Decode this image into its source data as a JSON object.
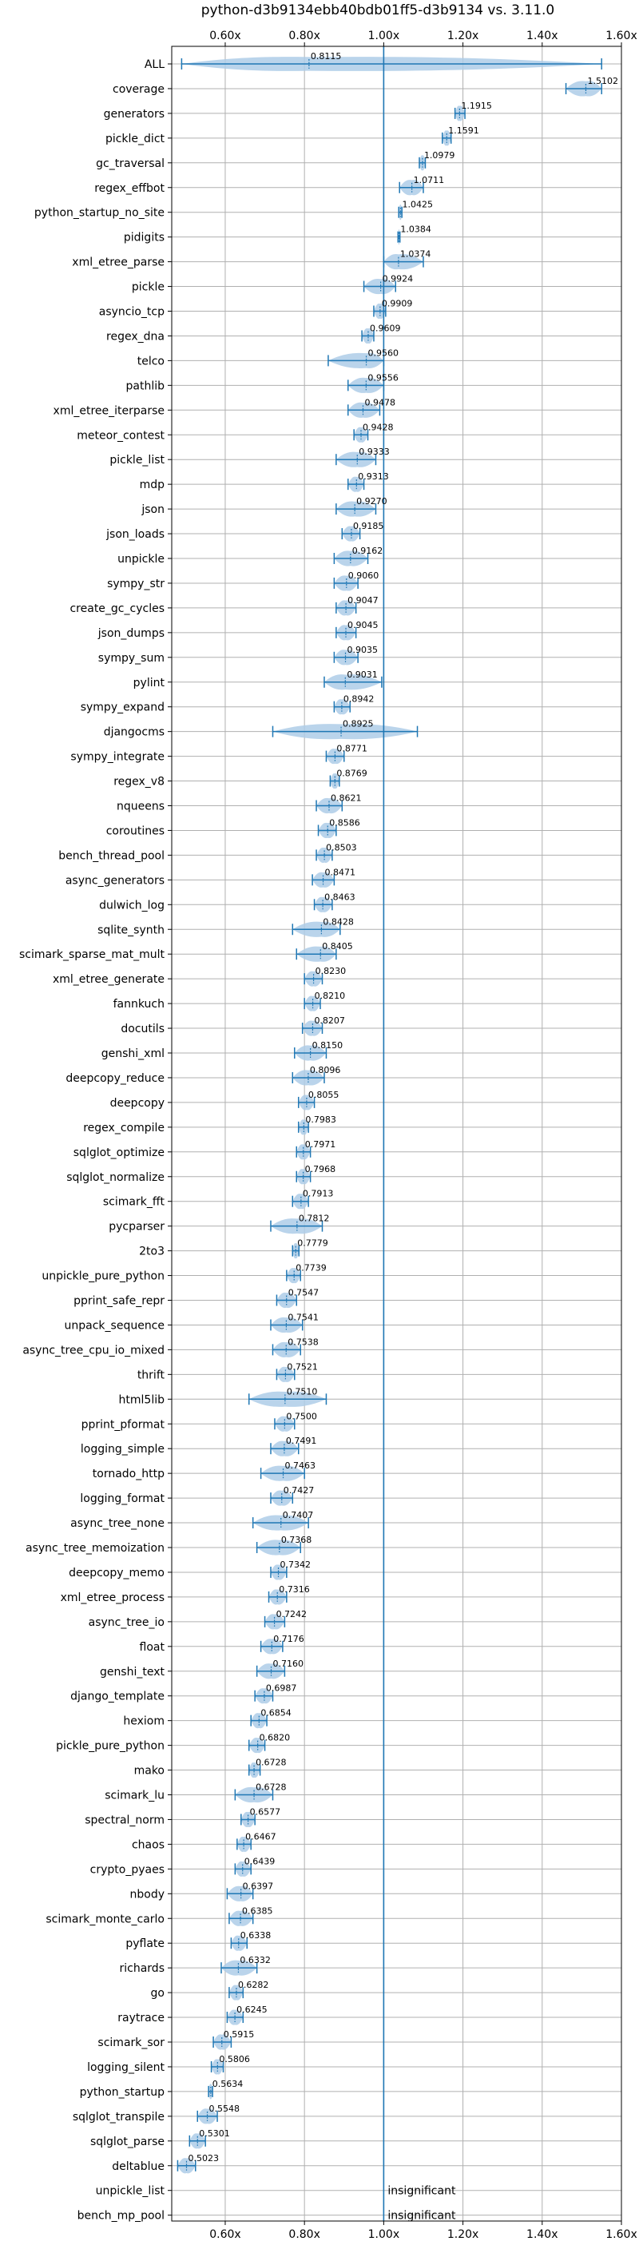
{
  "chart_data": {
    "type": "violin",
    "title": "python-d3b9134ebb40bdb01ff5-d3b9134 vs. 3.11.0",
    "xlabel": "",
    "ylabel": "",
    "xlim": [
      0.465,
      1.6
    ],
    "x_ticks": [
      0.6,
      0.8,
      1.0,
      1.2,
      1.4,
      1.6
    ],
    "x_tick_labels": [
      "0.60x",
      "0.80x",
      "1.00x",
      "1.20x",
      "1.40x",
      "1.60x"
    ],
    "reference_line": 1.0,
    "grid": true,
    "accent_color": "#1f77b4",
    "violin_color": "#aecde8",
    "insignificant_label": "insignificant",
    "benchmarks": [
      {
        "name": "ALL",
        "value": 0.8115,
        "min": 0.49,
        "max": 1.55,
        "spread": 0.28,
        "label": "0.8115"
      },
      {
        "name": "coverage",
        "value": 1.5102,
        "min": 1.46,
        "max": 1.55,
        "spread": 0.3,
        "label": "1.5102"
      },
      {
        "name": "generators",
        "value": 1.1915,
        "min": 1.18,
        "max": 1.205,
        "spread": 0.3,
        "label": "1.1915"
      },
      {
        "name": "pickle_dict",
        "value": 1.1591,
        "min": 1.148,
        "max": 1.17,
        "spread": 0.3,
        "label": "1.1591"
      },
      {
        "name": "gc_traversal",
        "value": 1.0979,
        "min": 1.09,
        "max": 1.105,
        "spread": 0.3,
        "label": "1.0979"
      },
      {
        "name": "regex_effbot",
        "value": 1.0711,
        "min": 1.04,
        "max": 1.1,
        "spread": 0.3,
        "label": "1.0711"
      },
      {
        "name": "python_startup_no_site",
        "value": 1.0425,
        "min": 1.038,
        "max": 1.046,
        "spread": 0.3,
        "label": "1.0425"
      },
      {
        "name": "pidigits",
        "value": 1.0384,
        "min": 1.036,
        "max": 1.041,
        "spread": 0.3,
        "label": "1.0384"
      },
      {
        "name": "xml_etree_parse",
        "value": 1.0374,
        "min": 1.0,
        "max": 1.1,
        "spread": 0.3,
        "label": "1.0374"
      },
      {
        "name": "pickle",
        "value": 0.9924,
        "min": 0.95,
        "max": 1.03,
        "spread": 0.3,
        "label": "0.9924"
      },
      {
        "name": "asyncio_tcp",
        "value": 0.9909,
        "min": 0.975,
        "max": 1.005,
        "spread": 0.3,
        "label": "0.9909"
      },
      {
        "name": "regex_dna",
        "value": 0.9609,
        "min": 0.945,
        "max": 0.975,
        "spread": 0.3,
        "label": "0.9609"
      },
      {
        "name": "telco",
        "value": 0.956,
        "min": 0.86,
        "max": 1.0,
        "spread": 0.3,
        "label": "0.9560"
      },
      {
        "name": "pathlib",
        "value": 0.9556,
        "min": 0.91,
        "max": 1.0,
        "spread": 0.3,
        "label": "0.9556"
      },
      {
        "name": "xml_etree_iterparse",
        "value": 0.9478,
        "min": 0.91,
        "max": 0.99,
        "spread": 0.3,
        "label": "0.9478"
      },
      {
        "name": "meteor_contest",
        "value": 0.9428,
        "min": 0.925,
        "max": 0.96,
        "spread": 0.3,
        "label": "0.9428"
      },
      {
        "name": "pickle_list",
        "value": 0.9333,
        "min": 0.88,
        "max": 0.98,
        "spread": 0.3,
        "label": "0.9333"
      },
      {
        "name": "mdp",
        "value": 0.9313,
        "min": 0.91,
        "max": 0.95,
        "spread": 0.3,
        "label": "0.9313"
      },
      {
        "name": "json",
        "value": 0.927,
        "min": 0.88,
        "max": 0.98,
        "spread": 0.3,
        "label": "0.9270"
      },
      {
        "name": "json_loads",
        "value": 0.9185,
        "min": 0.895,
        "max": 0.94,
        "spread": 0.3,
        "label": "0.9185"
      },
      {
        "name": "unpickle",
        "value": 0.9162,
        "min": 0.875,
        "max": 0.96,
        "spread": 0.3,
        "label": "0.9162"
      },
      {
        "name": "sympy_str",
        "value": 0.906,
        "min": 0.875,
        "max": 0.935,
        "spread": 0.3,
        "label": "0.9060"
      },
      {
        "name": "create_gc_cycles",
        "value": 0.9047,
        "min": 0.88,
        "max": 0.93,
        "spread": 0.3,
        "label": "0.9047"
      },
      {
        "name": "json_dumps",
        "value": 0.9045,
        "min": 0.88,
        "max": 0.93,
        "spread": 0.3,
        "label": "0.9045"
      },
      {
        "name": "sympy_sum",
        "value": 0.9035,
        "min": 0.875,
        "max": 0.935,
        "spread": 0.3,
        "label": "0.9035"
      },
      {
        "name": "pylint",
        "value": 0.9031,
        "min": 0.85,
        "max": 0.995,
        "spread": 0.3,
        "label": "0.9031"
      },
      {
        "name": "sympy_expand",
        "value": 0.8942,
        "min": 0.875,
        "max": 0.915,
        "spread": 0.3,
        "label": "0.8942"
      },
      {
        "name": "djangocms",
        "value": 0.8925,
        "min": 0.72,
        "max": 1.085,
        "spread": 0.3,
        "label": "0.8925"
      },
      {
        "name": "sympy_integrate",
        "value": 0.8771,
        "min": 0.855,
        "max": 0.9,
        "spread": 0.3,
        "label": "0.8771"
      },
      {
        "name": "regex_v8",
        "value": 0.8769,
        "min": 0.865,
        "max": 0.888,
        "spread": 0.3,
        "label": "0.8769"
      },
      {
        "name": "nqueens",
        "value": 0.8621,
        "min": 0.83,
        "max": 0.895,
        "spread": 0.3,
        "label": "0.8621"
      },
      {
        "name": "coroutines",
        "value": 0.8586,
        "min": 0.835,
        "max": 0.88,
        "spread": 0.3,
        "label": "0.8586"
      },
      {
        "name": "bench_thread_pool",
        "value": 0.8503,
        "min": 0.83,
        "max": 0.87,
        "spread": 0.3,
        "label": "0.8503"
      },
      {
        "name": "async_generators",
        "value": 0.8471,
        "min": 0.82,
        "max": 0.875,
        "spread": 0.3,
        "label": "0.8471"
      },
      {
        "name": "dulwich_log",
        "value": 0.8463,
        "min": 0.825,
        "max": 0.87,
        "spread": 0.3,
        "label": "0.8463"
      },
      {
        "name": "sqlite_synth",
        "value": 0.8428,
        "min": 0.77,
        "max": 0.89,
        "spread": 0.3,
        "label": "0.8428"
      },
      {
        "name": "scimark_sparse_mat_mult",
        "value": 0.8405,
        "min": 0.78,
        "max": 0.88,
        "spread": 0.3,
        "label": "0.8405"
      },
      {
        "name": "xml_etree_generate",
        "value": 0.823,
        "min": 0.8,
        "max": 0.845,
        "spread": 0.3,
        "label": "0.8230"
      },
      {
        "name": "fannkuch",
        "value": 0.821,
        "min": 0.8,
        "max": 0.84,
        "spread": 0.3,
        "label": "0.8210"
      },
      {
        "name": "docutils",
        "value": 0.8207,
        "min": 0.795,
        "max": 0.845,
        "spread": 0.3,
        "label": "0.8207"
      },
      {
        "name": "genshi_xml",
        "value": 0.815,
        "min": 0.775,
        "max": 0.855,
        "spread": 0.3,
        "label": "0.8150"
      },
      {
        "name": "deepcopy_reduce",
        "value": 0.8096,
        "min": 0.77,
        "max": 0.85,
        "spread": 0.3,
        "label": "0.8096"
      },
      {
        "name": "deepcopy",
        "value": 0.8055,
        "min": 0.785,
        "max": 0.825,
        "spread": 0.3,
        "label": "0.8055"
      },
      {
        "name": "regex_compile",
        "value": 0.7983,
        "min": 0.785,
        "max": 0.81,
        "spread": 0.3,
        "label": "0.7983"
      },
      {
        "name": "sqlglot_optimize",
        "value": 0.7971,
        "min": 0.78,
        "max": 0.815,
        "spread": 0.3,
        "label": "0.7971"
      },
      {
        "name": "sqlglot_normalize",
        "value": 0.7968,
        "min": 0.78,
        "max": 0.815,
        "spread": 0.3,
        "label": "0.7968"
      },
      {
        "name": "scimark_fft",
        "value": 0.7913,
        "min": 0.77,
        "max": 0.81,
        "spread": 0.3,
        "label": "0.7913"
      },
      {
        "name": "pycparser",
        "value": 0.7812,
        "min": 0.715,
        "max": 0.845,
        "spread": 0.3,
        "label": "0.7812"
      },
      {
        "name": "2to3",
        "value": 0.7779,
        "min": 0.77,
        "max": 0.786,
        "spread": 0.3,
        "label": "0.7779"
      },
      {
        "name": "unpickle_pure_python",
        "value": 0.7739,
        "min": 0.755,
        "max": 0.79,
        "spread": 0.3,
        "label": "0.7739"
      },
      {
        "name": "pprint_safe_repr",
        "value": 0.7547,
        "min": 0.73,
        "max": 0.78,
        "spread": 0.3,
        "label": "0.7547"
      },
      {
        "name": "unpack_sequence",
        "value": 0.7541,
        "min": 0.715,
        "max": 0.795,
        "spread": 0.3,
        "label": "0.7541"
      },
      {
        "name": "async_tree_cpu_io_mixed",
        "value": 0.7538,
        "min": 0.72,
        "max": 0.79,
        "spread": 0.3,
        "label": "0.7538"
      },
      {
        "name": "thrift",
        "value": 0.7521,
        "min": 0.73,
        "max": 0.775,
        "spread": 0.3,
        "label": "0.7521"
      },
      {
        "name": "html5lib",
        "value": 0.751,
        "min": 0.66,
        "max": 0.855,
        "spread": 0.3,
        "label": "0.7510"
      },
      {
        "name": "pprint_pformat",
        "value": 0.75,
        "min": 0.725,
        "max": 0.775,
        "spread": 0.3,
        "label": "0.7500"
      },
      {
        "name": "logging_simple",
        "value": 0.7491,
        "min": 0.715,
        "max": 0.785,
        "spread": 0.3,
        "label": "0.7491"
      },
      {
        "name": "tornado_http",
        "value": 0.7463,
        "min": 0.69,
        "max": 0.8,
        "spread": 0.3,
        "label": "0.7463"
      },
      {
        "name": "logging_format",
        "value": 0.7427,
        "min": 0.715,
        "max": 0.77,
        "spread": 0.3,
        "label": "0.7427"
      },
      {
        "name": "async_tree_none",
        "value": 0.7407,
        "min": 0.67,
        "max": 0.81,
        "spread": 0.3,
        "label": "0.7407"
      },
      {
        "name": "async_tree_memoization",
        "value": 0.7368,
        "min": 0.68,
        "max": 0.79,
        "spread": 0.3,
        "label": "0.7368"
      },
      {
        "name": "deepcopy_memo",
        "value": 0.7342,
        "min": 0.715,
        "max": 0.755,
        "spread": 0.3,
        "label": "0.7342"
      },
      {
        "name": "xml_etree_process",
        "value": 0.7316,
        "min": 0.71,
        "max": 0.755,
        "spread": 0.3,
        "label": "0.7316"
      },
      {
        "name": "async_tree_io",
        "value": 0.7242,
        "min": 0.7,
        "max": 0.75,
        "spread": 0.3,
        "label": "0.7242"
      },
      {
        "name": "float",
        "value": 0.7176,
        "min": 0.69,
        "max": 0.745,
        "spread": 0.3,
        "label": "0.7176"
      },
      {
        "name": "genshi_text",
        "value": 0.716,
        "min": 0.68,
        "max": 0.75,
        "spread": 0.3,
        "label": "0.7160"
      },
      {
        "name": "django_template",
        "value": 0.6987,
        "min": 0.675,
        "max": 0.72,
        "spread": 0.3,
        "label": "0.6987"
      },
      {
        "name": "hexiom",
        "value": 0.6854,
        "min": 0.665,
        "max": 0.705,
        "spread": 0.3,
        "label": "0.6854"
      },
      {
        "name": "pickle_pure_python",
        "value": 0.682,
        "min": 0.66,
        "max": 0.7,
        "spread": 0.3,
        "label": "0.6820"
      },
      {
        "name": "mako",
        "value": 0.6728,
        "min": 0.66,
        "max": 0.688,
        "spread": 0.3,
        "label": "0.6728"
      },
      {
        "name": "scimark_lu",
        "value": 0.6728,
        "min": 0.625,
        "max": 0.72,
        "spread": 0.3,
        "label": "0.6728"
      },
      {
        "name": "spectral_norm",
        "value": 0.6577,
        "min": 0.64,
        "max": 0.675,
        "spread": 0.3,
        "label": "0.6577"
      },
      {
        "name": "chaos",
        "value": 0.6467,
        "min": 0.63,
        "max": 0.665,
        "spread": 0.3,
        "label": "0.6467"
      },
      {
        "name": "crypto_pyaes",
        "value": 0.6439,
        "min": 0.625,
        "max": 0.665,
        "spread": 0.3,
        "label": "0.6439"
      },
      {
        "name": "nbody",
        "value": 0.6397,
        "min": 0.605,
        "max": 0.67,
        "spread": 0.3,
        "label": "0.6397"
      },
      {
        "name": "scimark_monte_carlo",
        "value": 0.6385,
        "min": 0.61,
        "max": 0.67,
        "spread": 0.3,
        "label": "0.6385"
      },
      {
        "name": "pyflate",
        "value": 0.6338,
        "min": 0.615,
        "max": 0.655,
        "spread": 0.3,
        "label": "0.6338"
      },
      {
        "name": "richards",
        "value": 0.6332,
        "min": 0.59,
        "max": 0.68,
        "spread": 0.3,
        "label": "0.6332"
      },
      {
        "name": "go",
        "value": 0.6282,
        "min": 0.61,
        "max": 0.645,
        "spread": 0.3,
        "label": "0.6282"
      },
      {
        "name": "raytrace",
        "value": 0.6245,
        "min": 0.605,
        "max": 0.645,
        "spread": 0.3,
        "label": "0.6245"
      },
      {
        "name": "scimark_sor",
        "value": 0.5915,
        "min": 0.57,
        "max": 0.615,
        "spread": 0.3,
        "label": "0.5915"
      },
      {
        "name": "logging_silent",
        "value": 0.5806,
        "min": 0.565,
        "max": 0.595,
        "spread": 0.3,
        "label": "0.5806"
      },
      {
        "name": "python_startup",
        "value": 0.5634,
        "min": 0.558,
        "max": 0.568,
        "spread": 0.3,
        "label": "0.5634"
      },
      {
        "name": "sqlglot_transpile",
        "value": 0.5548,
        "min": 0.53,
        "max": 0.58,
        "spread": 0.3,
        "label": "0.5548"
      },
      {
        "name": "sqlglot_parse",
        "value": 0.5301,
        "min": 0.51,
        "max": 0.55,
        "spread": 0.3,
        "label": "0.5301"
      },
      {
        "name": "deltablue",
        "value": 0.5023,
        "min": 0.48,
        "max": 0.525,
        "spread": 0.3,
        "label": "0.5023"
      },
      {
        "name": "unpickle_list",
        "value": null,
        "label": ""
      },
      {
        "name": "bench_mp_pool",
        "value": null,
        "label": ""
      }
    ]
  }
}
